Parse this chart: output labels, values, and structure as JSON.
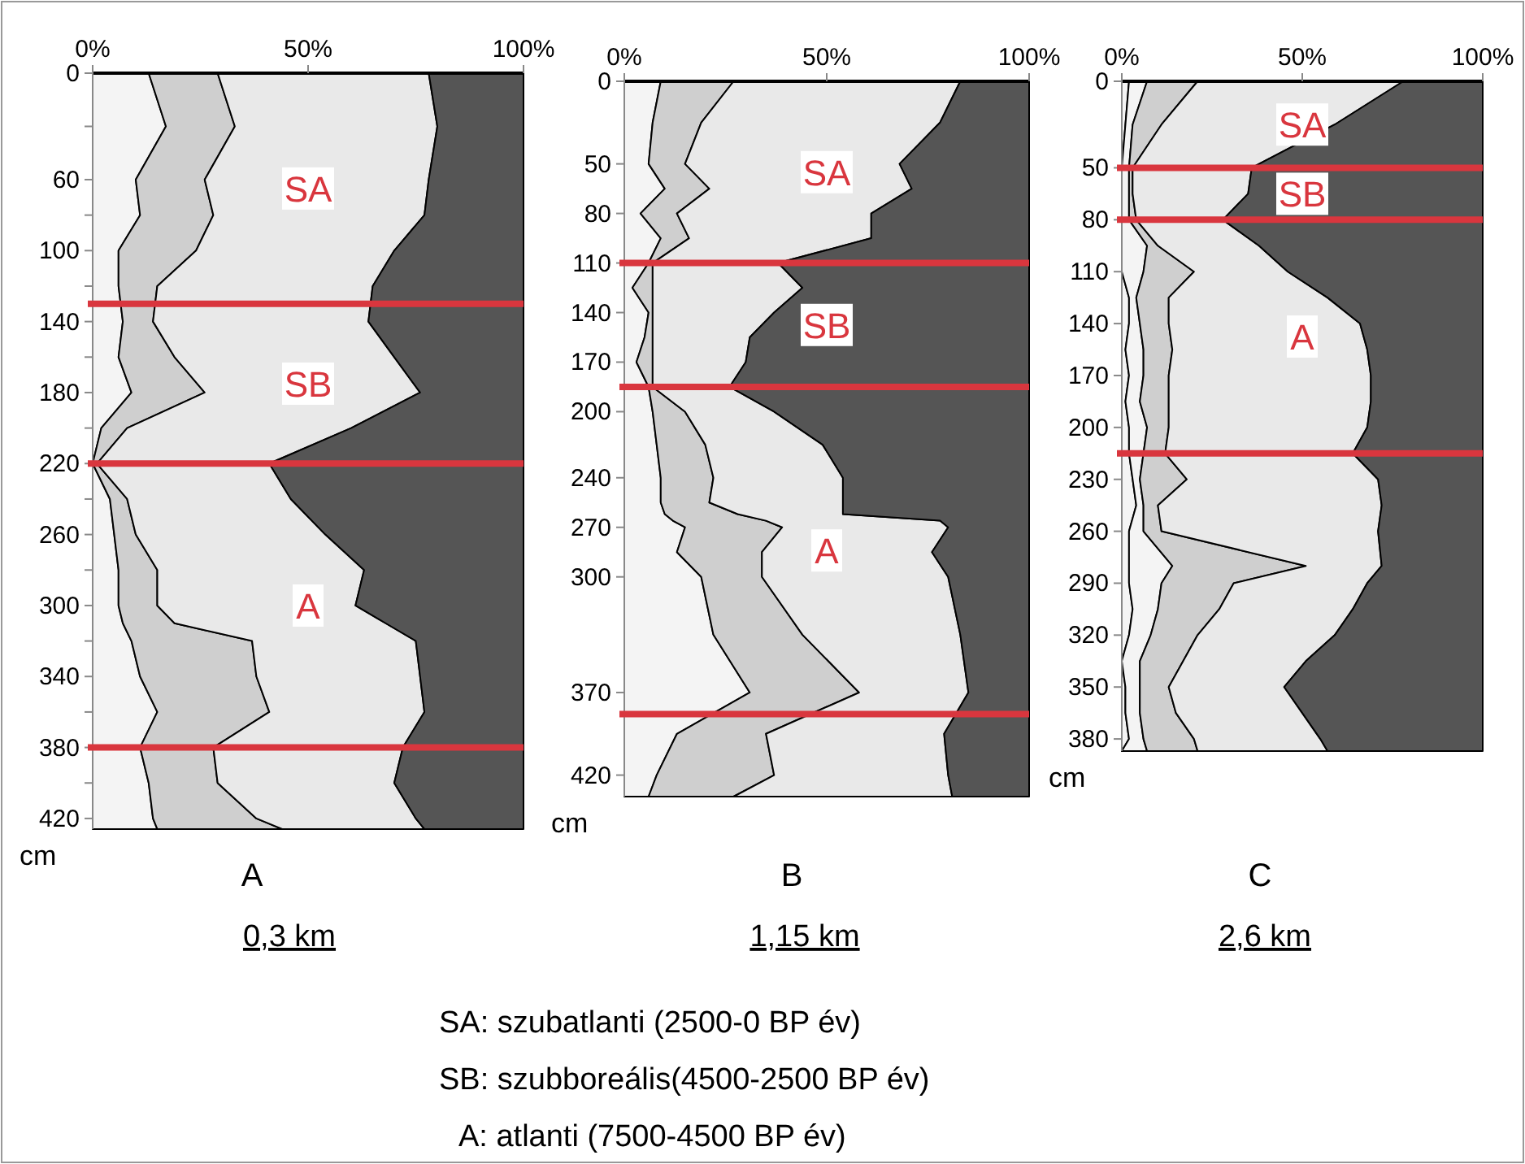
{
  "chart_data": [
    {
      "type": "area",
      "stacked": true,
      "orientation": "horizontal",
      "title": "A",
      "subtitle": "0,3 km",
      "ylabel": "cm",
      "xlim": [
        0,
        100
      ],
      "xticks": [
        {
          "value": 0,
          "label": "0%"
        },
        {
          "value": 50,
          "label": "50%"
        },
        {
          "value": 100,
          "label": "100%"
        }
      ],
      "ylim": [
        426,
        0
      ],
      "yticks": [
        0,
        {
          "value": 30,
          "label": null
        },
        60,
        {
          "value": 80,
          "label": null
        },
        100,
        {
          "value": 120,
          "label": null
        },
        140,
        {
          "value": 160,
          "label": null
        },
        180,
        {
          "value": 200,
          "label": null
        },
        220,
        {
          "value": 240,
          "label": null
        },
        260,
        {
          "value": 280,
          "label": null
        },
        300,
        {
          "value": 320,
          "label": null
        },
        340,
        {
          "value": 360,
          "label": null
        },
        380,
        {
          "value": 400,
          "label": null
        },
        420
      ],
      "x": [
        0,
        30,
        60,
        80,
        100,
        120,
        140,
        160,
        180,
        200,
        220,
        240,
        260,
        280,
        300,
        310,
        320,
        340,
        360,
        380,
        400,
        420,
        426
      ],
      "series": [
        {
          "color": "#f4f4f4",
          "values": [
            13,
            17,
            10,
            11,
            6,
            6,
            7,
            6,
            9,
            2,
            0,
            4,
            5,
            6,
            6,
            7,
            9,
            11,
            15,
            11,
            13,
            14,
            15
          ]
        },
        {
          "color": "#cfcfcf",
          "values": [
            16,
            16,
            16,
            17,
            18,
            9,
            7,
            13,
            17,
            6,
            1,
            4,
            5,
            9,
            9,
            12,
            28,
            27,
            26,
            17,
            16,
            24,
            29
          ]
        },
        {
          "color": "#e9e9e9",
          "values": [
            49,
            47,
            52,
            49,
            46,
            50,
            50,
            51,
            50,
            52,
            40,
            38,
            44,
            48,
            46,
            49,
            38,
            38,
            36,
            44,
            41,
            37,
            33
          ]
        },
        {
          "color": "#555555",
          "values": [
            22,
            20,
            22,
            23,
            30,
            35,
            36,
            30,
            24,
            40,
            59,
            54,
            46,
            37,
            39,
            32,
            25,
            24,
            23,
            28,
            30,
            25,
            23
          ]
        }
      ],
      "ref_lines": [
        {
          "axis": "y",
          "value": 130,
          "color": "#d9363e"
        },
        {
          "axis": "y",
          "value": 220,
          "color": "#d9363e"
        },
        {
          "axis": "y",
          "value": 380,
          "color": "#d9363e"
        }
      ],
      "annotations": [
        "SA",
        "SB",
        "A"
      ]
    },
    {
      "type": "area",
      "stacked": true,
      "orientation": "horizontal",
      "title": "B",
      "subtitle": "1,15 km",
      "ylabel": "cm",
      "xlim": [
        0,
        100
      ],
      "xticks": [
        {
          "value": 0,
          "label": "0%"
        },
        {
          "value": 50,
          "label": "50%"
        },
        {
          "value": 100,
          "label": "100%"
        }
      ],
      "ylim": [
        433,
        0
      ],
      "yticks": [
        0,
        50,
        80,
        110,
        140,
        170,
        200,
        240,
        270,
        300,
        370,
        420
      ],
      "x": [
        0,
        25,
        50,
        65,
        80,
        95,
        110,
        125,
        140,
        155,
        170,
        185,
        200,
        220,
        240,
        255,
        262,
        266,
        270,
        285,
        300,
        335,
        370,
        395,
        420,
        433
      ],
      "series": [
        {
          "color": "#f4f4f4",
          "values": [
            9,
            7,
            6,
            10,
            4,
            9,
            6,
            2,
            6,
            5,
            3,
            6,
            7,
            8,
            9,
            9,
            10,
            12,
            15,
            13,
            19,
            22,
            31,
            13,
            8,
            6
          ]
        },
        {
          "color": "#cfcfcf",
          "values": [
            18,
            12,
            9,
            11,
            9,
            7,
            1,
            5,
            1,
            2,
            4,
            1,
            8,
            12,
            13,
            12,
            18,
            23,
            24,
            21,
            15,
            22,
            27,
            22,
            29,
            21
          ]
        },
        {
          "color": "#e9e9e9",
          "values": [
            56,
            59,
            53,
            50,
            48,
            45,
            31,
            37,
            30,
            24,
            23,
            19,
            22,
            29,
            32,
            33,
            26,
            43,
            41,
            42,
            46,
            39,
            27,
            44,
            43,
            54
          ]
        },
        {
          "color": "#555555",
          "values": [
            17,
            22,
            32,
            29,
            39,
            39,
            62,
            56,
            63,
            69,
            70,
            74,
            63,
            51,
            46,
            46,
            46,
            22,
            20,
            24,
            20,
            17,
            15,
            21,
            20,
            19
          ]
        }
      ],
      "ref_lines": [
        {
          "axis": "y",
          "value": 110,
          "color": "#d9363e"
        },
        {
          "axis": "y",
          "value": 185,
          "color": "#d9363e"
        },
        {
          "axis": "y",
          "value": 383,
          "color": "#d9363e"
        }
      ],
      "annotations": [
        "SA",
        "SB",
        "A"
      ]
    },
    {
      "type": "area",
      "stacked": true,
      "orientation": "horizontal",
      "title": "C",
      "subtitle": "2,6 km",
      "ylabel": "cm",
      "xlim": [
        0,
        100
      ],
      "xticks": [
        {
          "value": 0,
          "label": "0%"
        },
        {
          "value": 50,
          "label": "50%"
        },
        {
          "value": 100,
          "label": "100%"
        }
      ],
      "ylim": [
        387,
        0
      ],
      "yticks": [
        0,
        50,
        80,
        110,
        140,
        170,
        200,
        230,
        260,
        290,
        320,
        350,
        380
      ],
      "x": [
        0,
        25,
        50,
        65,
        80,
        95,
        110,
        125,
        140,
        155,
        170,
        185,
        200,
        215,
        230,
        245,
        260,
        280,
        290,
        305,
        320,
        335,
        350,
        365,
        380,
        387
      ],
      "series": [
        {
          "color": "#f4f4f4",
          "values": [
            2,
            1,
            0,
            0,
            0,
            0,
            0,
            2,
            2,
            1,
            2,
            1,
            2,
            2,
            3,
            4,
            2,
            2,
            2,
            3,
            2,
            0,
            1,
            1,
            2,
            0
          ]
        },
        {
          "color": "#f4f4f4",
          "values": [
            5,
            2,
            2,
            2,
            2,
            7,
            6,
            2,
            3,
            5,
            4,
            4,
            5,
            4,
            2,
            2,
            4,
            12,
            9,
            7,
            6,
            5,
            4,
            4,
            4,
            7
          ]
        },
        {
          "color": "#cfcfcf",
          "values": [
            14,
            8,
            1,
            1,
            2,
            3,
            14,
            9,
            8,
            8,
            7,
            8,
            6,
            6,
            13,
            4,
            5,
            37,
            20,
            17,
            13,
            12,
            8,
            10,
            14,
            14
          ]
        },
        {
          "color": "#e9e9e9",
          "values": [
            57,
            48,
            33,
            32,
            24,
            28,
            26,
            44,
            53,
            54,
            56,
            56,
            55,
            52,
            53,
            62,
            60,
            21,
            37,
            37,
            38,
            34,
            32,
            35,
            35,
            36
          ]
        },
        {
          "color": "#555555",
          "values": [
            22,
            41,
            64,
            65,
            72,
            62,
            54,
            43,
            34,
            32,
            31,
            31,
            32,
            36,
            29,
            28,
            29,
            28,
            32,
            36,
            41,
            49,
            55,
            50,
            45,
            43
          ]
        }
      ],
      "ref_lines": [
        {
          "axis": "y",
          "value": 50,
          "color": "#d9363e"
        },
        {
          "axis": "y",
          "value": 80,
          "color": "#d9363e"
        },
        {
          "axis": "y",
          "value": 215,
          "color": "#d9363e"
        }
      ],
      "annotations": [
        "SA",
        "SB",
        "A"
      ]
    },
    {
      "type": "other",
      "annotations": [
        "SA: szubatlanti (2500-0 BP év)",
        "SB: szubboreális(4500-2500 BP év)",
        "A: atlanti (7500-4500 BP év)"
      ]
    }
  ]
}
